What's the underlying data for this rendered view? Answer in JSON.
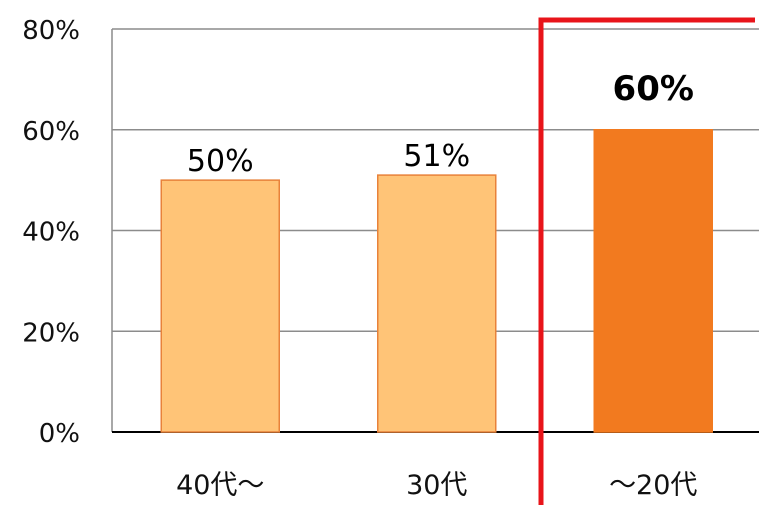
{
  "chart_data": {
    "type": "bar",
    "categories": [
      "40代～",
      "30代",
      "～20代"
    ],
    "values": [
      50,
      51,
      60
    ],
    "data_labels": [
      "50%",
      "51%",
      "60%"
    ],
    "highlight_index": 2,
    "ylim": [
      0,
      80
    ],
    "yticks": [
      0,
      20,
      40,
      60,
      80
    ],
    "ytick_labels": [
      "0%",
      "20%",
      "40%",
      "60%",
      "80%"
    ],
    "title": "",
    "xlabel": "",
    "ylabel": "",
    "grid": true,
    "colors": {
      "bar": "#FFC477",
      "bar_border": "#E8823A",
      "highlight_bar": "#F27A1F",
      "highlight_box": "#E8141A",
      "grid": "#8C8C8C",
      "axis": "#000000"
    }
  }
}
